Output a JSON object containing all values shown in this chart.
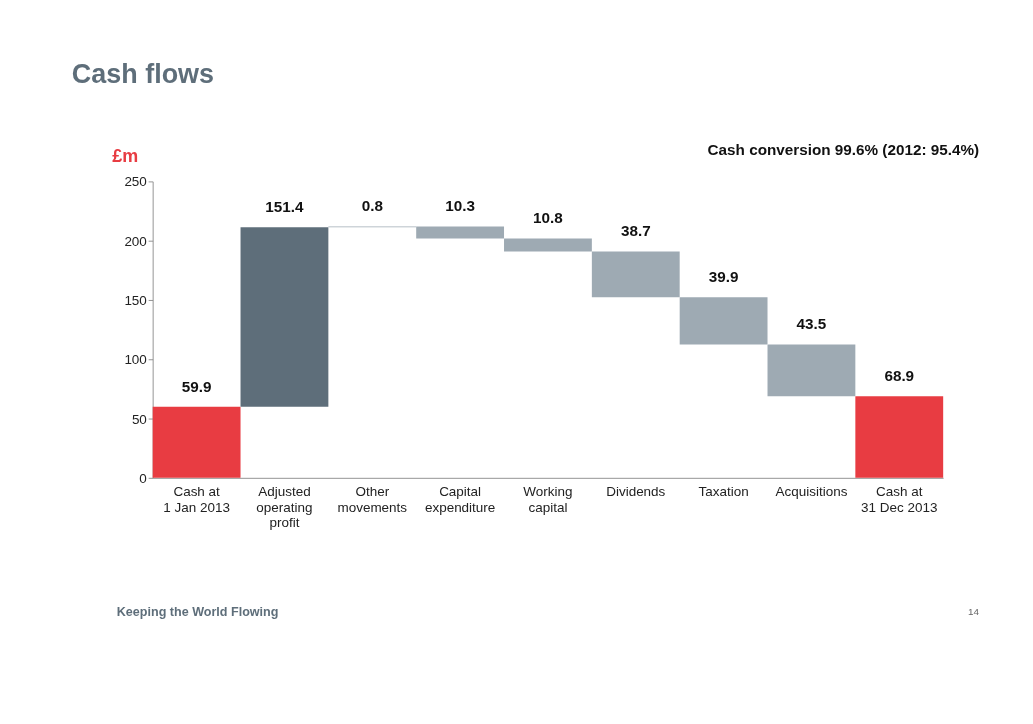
{
  "chart_data": {
    "type": "bar",
    "title": "Cash flows",
    "ylabel": "£m",
    "categories": [
      "Cash at\n1 Jan 2013",
      "Adjusted\noperating\nprofit",
      "Other\nmovements",
      "Capital\nexpenditure",
      "Working\ncapital",
      "Dividends",
      "Taxation",
      "Acquisitions",
      "Cash at\n31 Dec 2013"
    ],
    "values": [
      59.9,
      151.4,
      0.8,
      10.3,
      10.8,
      38.7,
      39.9,
      43.5,
      68.9
    ],
    "base": [
      0,
      59.9,
      211.3,
      201.8,
      191,
      152.3,
      112.4,
      68.9,
      0
    ],
    "colors": [
      "#e83c42",
      "#5e6e7a",
      "#9eaab3",
      "#9eaab3",
      "#9eaab3",
      "#9eaab3",
      "#9eaab3",
      "#9eaab3",
      "#e83c42"
    ],
    "ylim": [
      0,
      250
    ],
    "yticks": [
      0,
      50,
      100,
      150,
      200,
      250
    ],
    "grid": false,
    "data_labels": true,
    "annotations": [
      "Cash conversion 99.6% (2012: 95.4%)",
      "Keeping the World Flowing",
      "14"
    ]
  }
}
